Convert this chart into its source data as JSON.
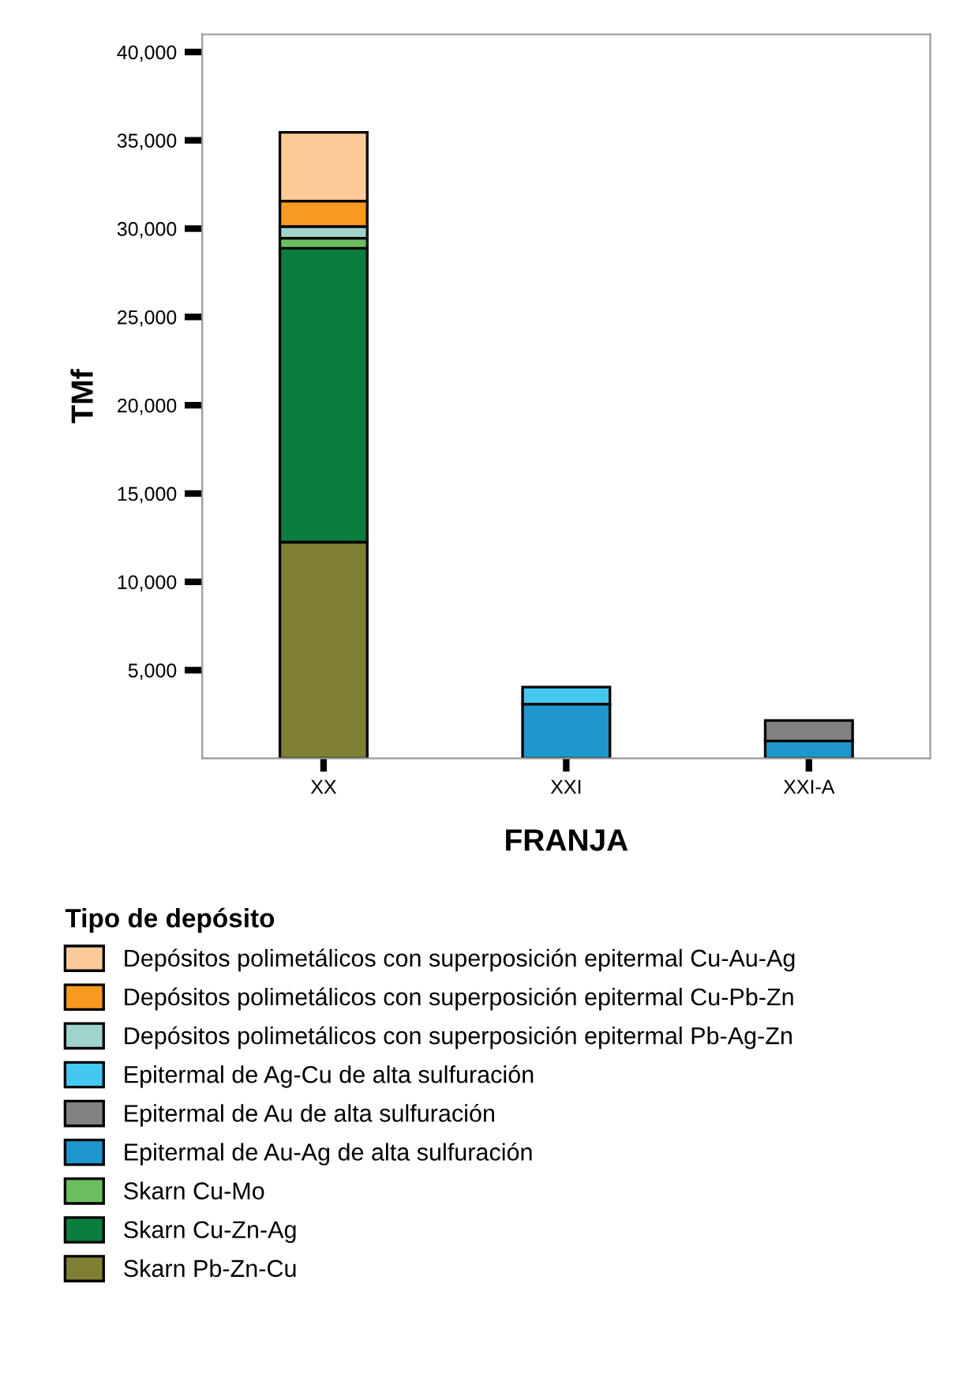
{
  "chart_data": {
    "type": "bar",
    "stacked": true,
    "xlabel": "FRANJA",
    "ylabel": "TMf",
    "legend_title": "Tipo de depósito",
    "legend": "bottom",
    "grid": false,
    "categories": [
      "XX",
      "XXI",
      "XXI-A"
    ],
    "ylim": [
      0,
      41000
    ],
    "yticks": [
      {
        "value": 5000,
        "label": "5,000"
      },
      {
        "value": 10000,
        "label": "10,000"
      },
      {
        "value": 15000,
        "label": "15,000"
      },
      {
        "value": 20000,
        "label": "20,000"
      },
      {
        "value": 25000,
        "label": "25,000"
      },
      {
        "value": 30000,
        "label": "30,000"
      },
      {
        "value": 35000,
        "label": "35,000"
      },
      {
        "value": 40000,
        "label": "40,000"
      }
    ],
    "series": [
      {
        "name": "Skarn Pb-Zn-Cu",
        "color": "#808035",
        "values": [
          12250,
          null,
          null
        ]
      },
      {
        "name": "Skarn Cu-Zn-Ag",
        "color": "#0b7e3e",
        "values": [
          16640,
          null,
          null
        ]
      },
      {
        "name": "Skarn Cu-Mo",
        "color": "#6cbf5f",
        "values": [
          570,
          null,
          null
        ]
      },
      {
        "name": "Epitermal de Au-Ag de alta sulfuración",
        "color": "#1e98cc",
        "values": [
          null,
          3080,
          990
        ]
      },
      {
        "name": "Epitermal de Au de alta sulfuración",
        "color": "#828282",
        "values": [
          null,
          null,
          1160
        ]
      },
      {
        "name": "Epitermal de Ag-Cu de alta sulfuración",
        "color": "#45c8f0",
        "values": [
          null,
          960,
          null
        ]
      },
      {
        "name": "Depósitos polimetálicos con superposición epitermal Pb-Ag-Zn",
        "color": "#9fd3cc",
        "values": [
          660,
          null,
          null
        ]
      },
      {
        "name": "Depósitos polimetálicos con superposición epitermal Cu-Pb-Zn",
        "color": "#f79a20",
        "values": [
          1440,
          null,
          null
        ]
      },
      {
        "name": "Depósitos polimetálicos con superposición epitermal Cu-Au-Ag",
        "color": "#fdcb99",
        "values": [
          3890,
          null,
          null
        ]
      }
    ]
  }
}
